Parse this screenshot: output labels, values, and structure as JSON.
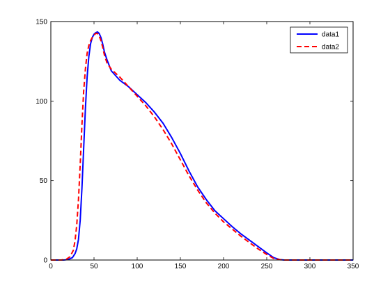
{
  "chart_data": {
    "type": "line",
    "title": "",
    "xlabel": "",
    "ylabel": "",
    "xlim": [
      0,
      350
    ],
    "ylim": [
      0,
      150
    ],
    "x_ticks": [
      0,
      50,
      100,
      150,
      200,
      250,
      300,
      350
    ],
    "y_ticks": [
      0,
      50,
      100,
      150
    ],
    "grid": false,
    "legend_position": "top-right",
    "series": [
      {
        "name": "data1",
        "color": "#0000ff",
        "line_style": "solid",
        "points": [
          [
            0,
            0
          ],
          [
            15,
            0
          ],
          [
            20,
            0.3
          ],
          [
            25,
            1.5
          ],
          [
            28,
            4
          ],
          [
            30,
            7
          ],
          [
            32,
            13
          ],
          [
            34,
            25
          ],
          [
            36,
            45
          ],
          [
            38,
            70
          ],
          [
            40,
            95
          ],
          [
            42,
            115
          ],
          [
            44,
            128
          ],
          [
            46,
            136
          ],
          [
            48,
            140
          ],
          [
            50,
            142
          ],
          [
            52,
            143
          ],
          [
            54,
            143.5
          ],
          [
            56,
            142.5
          ],
          [
            58,
            140
          ],
          [
            60,
            136
          ],
          [
            62,
            131
          ],
          [
            65,
            126
          ],
          [
            70,
            119
          ],
          [
            75,
            116
          ],
          [
            80,
            113
          ],
          [
            90,
            109
          ],
          [
            100,
            104
          ],
          [
            110,
            99
          ],
          [
            120,
            93
          ],
          [
            130,
            86
          ],
          [
            140,
            77
          ],
          [
            150,
            67
          ],
          [
            160,
            56
          ],
          [
            170,
            46
          ],
          [
            180,
            38
          ],
          [
            190,
            31
          ],
          [
            200,
            26
          ],
          [
            210,
            21
          ],
          [
            220,
            16.5
          ],
          [
            230,
            12.5
          ],
          [
            240,
            8.5
          ],
          [
            250,
            4.5
          ],
          [
            258,
            1.5
          ],
          [
            265,
            0.3
          ],
          [
            270,
            0
          ],
          [
            350,
            0
          ]
        ]
      },
      {
        "name": "data2",
        "color": "#ff0000",
        "line_style": "dashed",
        "points": [
          [
            0,
            0
          ],
          [
            12,
            0
          ],
          [
            18,
            0.5
          ],
          [
            22,
            2
          ],
          [
            26,
            6
          ],
          [
            28,
            12
          ],
          [
            30,
            22
          ],
          [
            32,
            38
          ],
          [
            34,
            60
          ],
          [
            36,
            85
          ],
          [
            38,
            106
          ],
          [
            40,
            120
          ],
          [
            42,
            130
          ],
          [
            44,
            135
          ],
          [
            46,
            138
          ],
          [
            48,
            140
          ],
          [
            50,
            141.5
          ],
          [
            52,
            142.5
          ],
          [
            54,
            142.5
          ],
          [
            56,
            141
          ],
          [
            58,
            138
          ],
          [
            60,
            134
          ],
          [
            62,
            129
          ],
          [
            65,
            124
          ],
          [
            70,
            120
          ],
          [
            75,
            117.5
          ],
          [
            80,
            115
          ],
          [
            90,
            109
          ],
          [
            100,
            103
          ],
          [
            110,
            97
          ],
          [
            120,
            90
          ],
          [
            130,
            82
          ],
          [
            140,
            73
          ],
          [
            150,
            63
          ],
          [
            160,
            53
          ],
          [
            170,
            44
          ],
          [
            180,
            36
          ],
          [
            190,
            29.5
          ],
          [
            200,
            24
          ],
          [
            210,
            19.5
          ],
          [
            220,
            15
          ],
          [
            230,
            11
          ],
          [
            240,
            7
          ],
          [
            250,
            3.5
          ],
          [
            258,
            1
          ],
          [
            265,
            0.2
          ],
          [
            270,
            0
          ],
          [
            350,
            0
          ]
        ]
      }
    ]
  }
}
